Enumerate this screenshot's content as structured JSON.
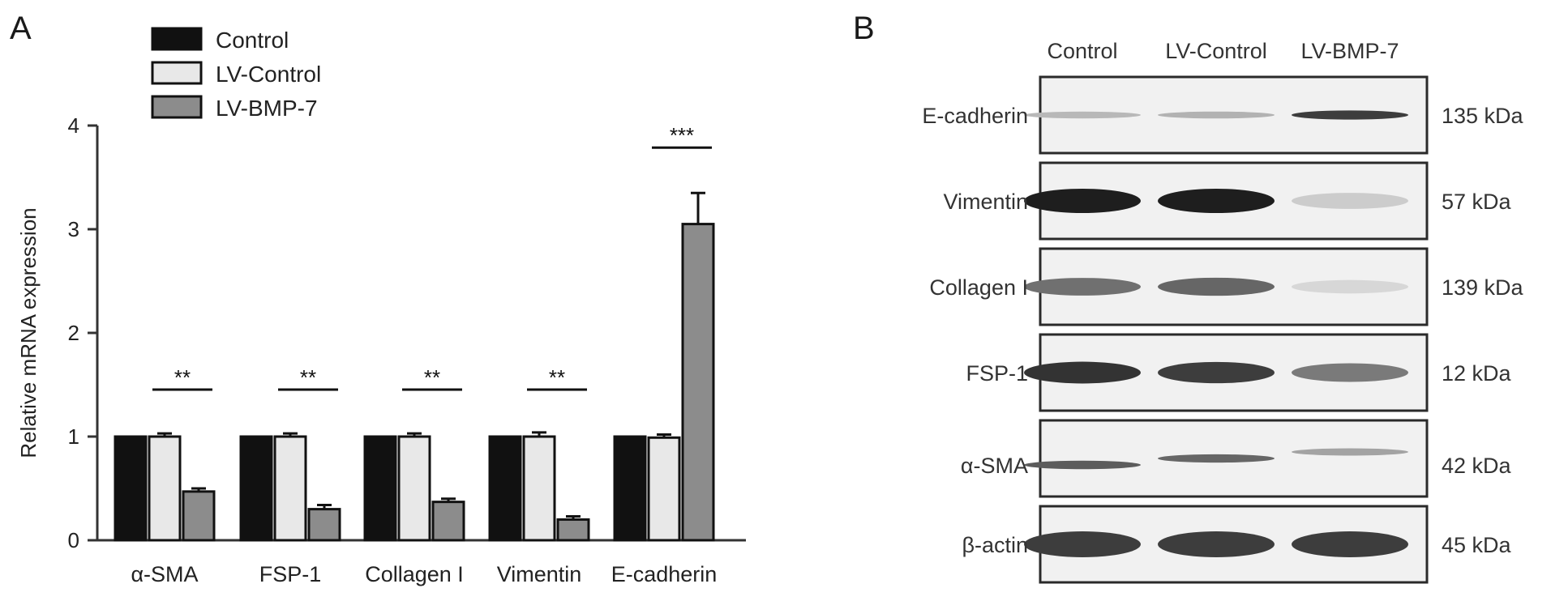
{
  "panels": {
    "a_label": "A",
    "b_label": "B"
  },
  "chart_data": {
    "type": "bar",
    "title": "",
    "ylabel": "Relative mRNA expression",
    "xlabel": "",
    "ylim": [
      0,
      4
    ],
    "yticks": [
      "0",
      "1",
      "2",
      "3",
      "4"
    ],
    "categories": [
      "α-SMA",
      "FSP-1",
      "Collagen I",
      "Vimentin",
      "E-cadherin"
    ],
    "legend_position": "top-left",
    "series": [
      {
        "name": "Control",
        "color": "#111111",
        "values": [
          1.0,
          1.0,
          1.0,
          1.0,
          1.0
        ],
        "errors": [
          0,
          0,
          0,
          0,
          0
        ]
      },
      {
        "name": "LV-Control",
        "color": "#e8e8e8",
        "values": [
          1.0,
          1.0,
          1.0,
          1.0,
          0.99
        ],
        "errors": [
          0.03,
          0.03,
          0.03,
          0.04,
          0.03
        ]
      },
      {
        "name": "LV-BMP-7",
        "color": "#8c8c8c",
        "values": [
          0.47,
          0.3,
          0.37,
          0.2,
          3.05
        ],
        "errors": [
          0.03,
          0.04,
          0.03,
          0.03,
          0.3
        ]
      }
    ],
    "significance": [
      "**",
      "**",
      "**",
      "**",
      "***"
    ]
  },
  "western_blot": {
    "lanes": [
      "Control",
      "LV-Control",
      "LV-BMP-7"
    ],
    "blots": [
      {
        "protein": "E-cadherin",
        "size": "135 kDa",
        "intensity": [
          0.25,
          0.28,
          0.85
        ]
      },
      {
        "protein": "Vimentin",
        "size": "57 kDa",
        "intensity": [
          1.0,
          1.0,
          0.15
        ]
      },
      {
        "protein": "Collagen I",
        "size": "139 kDa",
        "intensity": [
          0.6,
          0.65,
          0.1
        ]
      },
      {
        "protein": "FSP-1",
        "size": "12 kDa",
        "intensity": [
          0.9,
          0.85,
          0.55
        ]
      },
      {
        "protein": "α-SMA",
        "size": "42 kDa",
        "intensity": [
          0.7,
          0.65,
          0.35
        ]
      },
      {
        "protein": "β-actin",
        "size": "45 kDa",
        "intensity": [
          0.85,
          0.85,
          0.85
        ]
      }
    ]
  }
}
